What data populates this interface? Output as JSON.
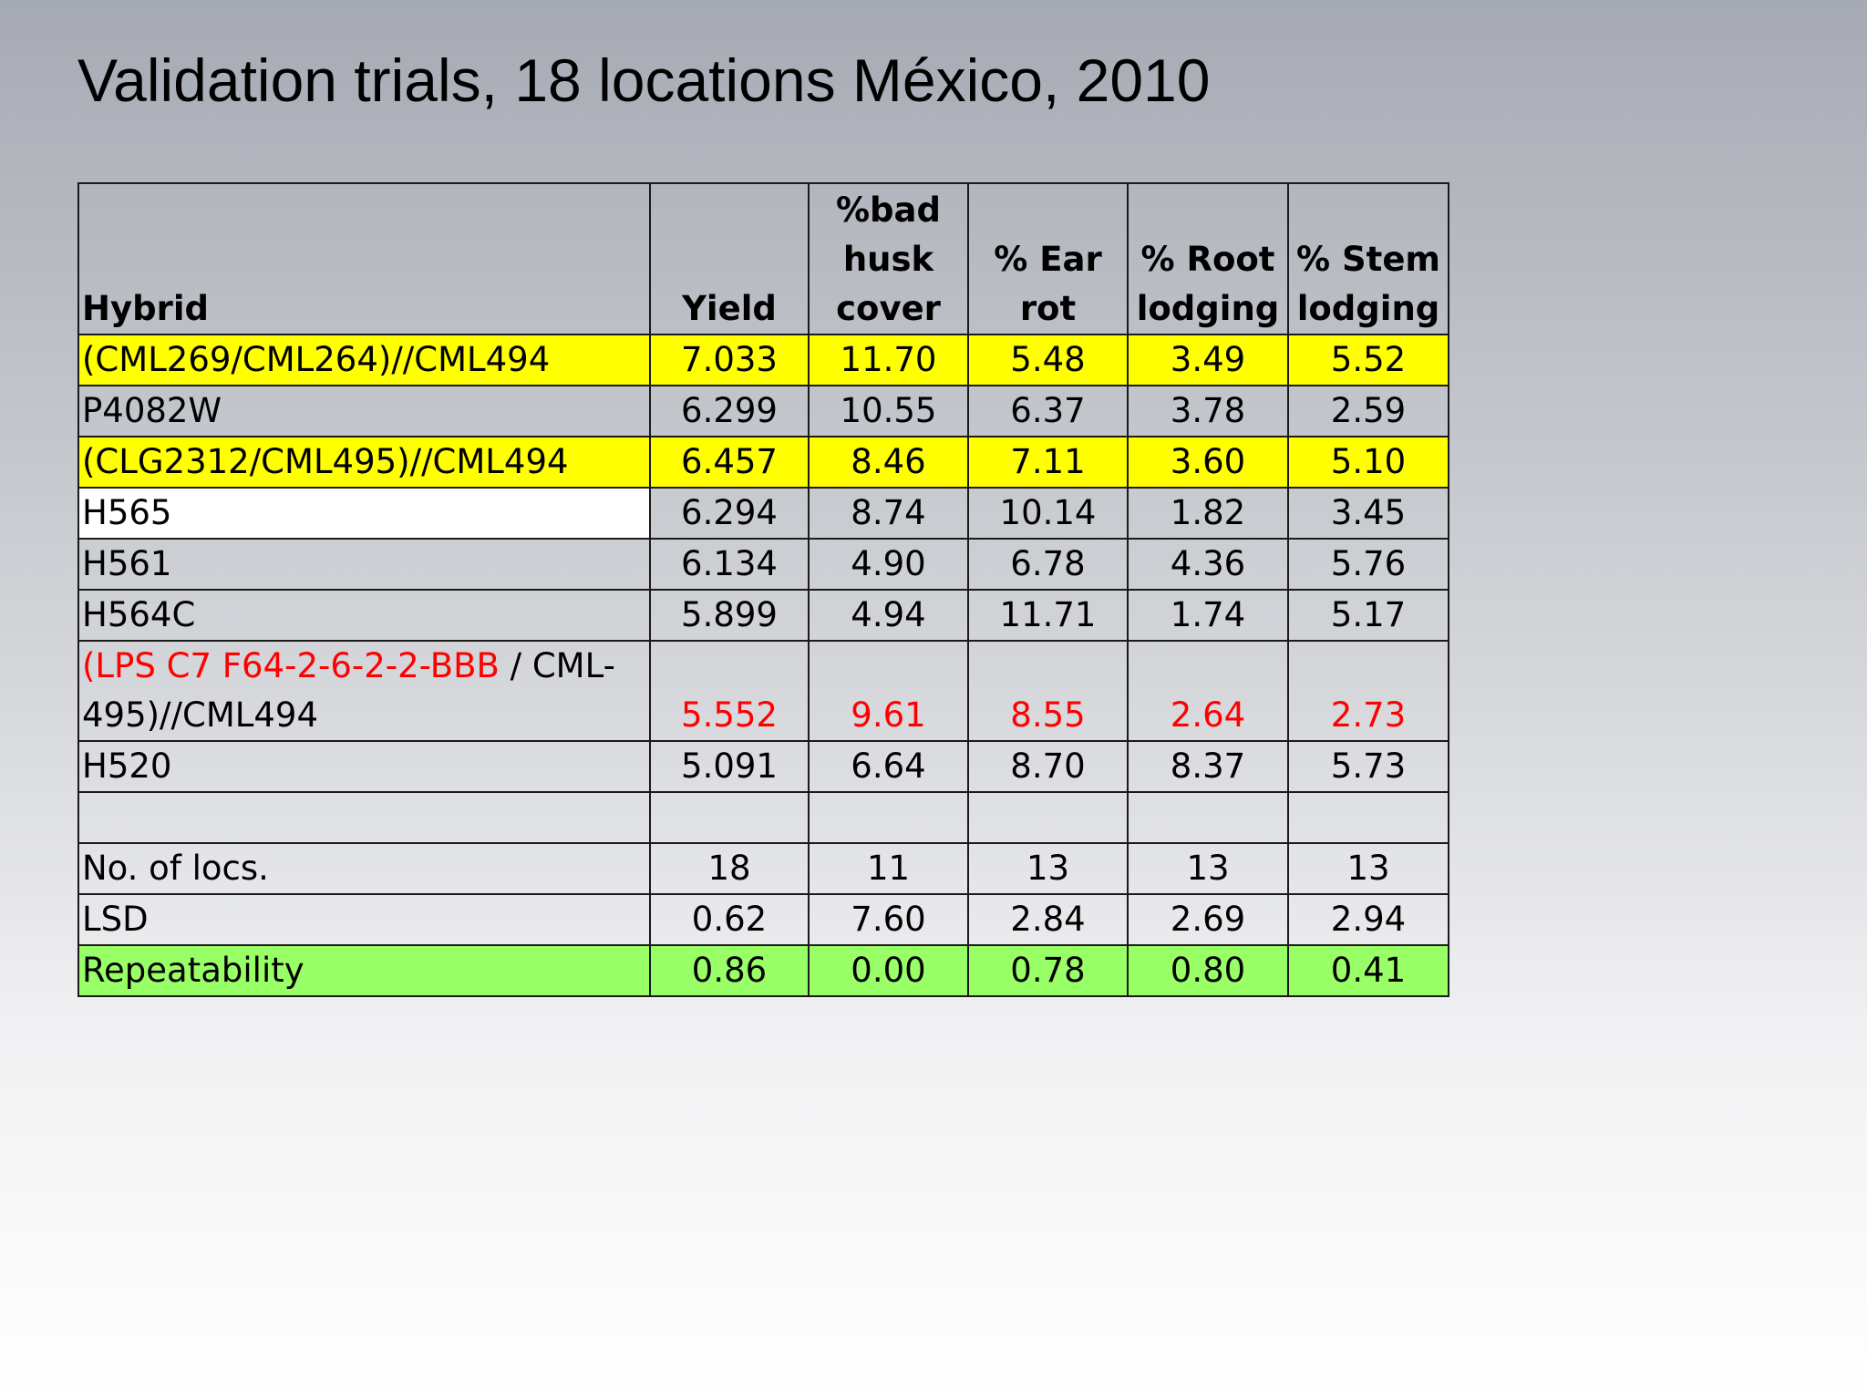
{
  "title": "Validation trials, 18 locations México, 2010",
  "colors": {
    "highlight_yellow": "#ffff00",
    "highlight_green": "#99ff66",
    "highlight_white": "#ffffff",
    "red_text": "#ff0000"
  },
  "table": {
    "headers": {
      "hybrid": "Hybrid",
      "yield": "Yield",
      "bad_husk": "%bad husk cover",
      "ear_rot": "% Ear rot",
      "root_lodging": "% Root lodging",
      "stem_lodging": "% Stem lodging"
    },
    "rows": [
      {
        "hybrid": "(CML269/CML264)//CML494",
        "yield": "7.033",
        "bad_husk": "11.70",
        "ear_rot": "5.48",
        "root_lodging": "3.49",
        "stem_lodging": "5.52",
        "highlight": "yellow"
      },
      {
        "hybrid": "P4082W",
        "yield": "6.299",
        "bad_husk": "10.55",
        "ear_rot": "6.37",
        "root_lodging": "3.78",
        "stem_lodging": "2.59"
      },
      {
        "hybrid": "(CLG2312/CML495)//CML494",
        "yield": "6.457",
        "bad_husk": "8.46",
        "ear_rot": "7.11",
        "root_lodging": "3.60",
        "stem_lodging": "5.10",
        "highlight": "yellow"
      },
      {
        "hybrid": "H565",
        "yield": "6.294",
        "bad_husk": "8.74",
        "ear_rot": "10.14",
        "root_lodging": "1.82",
        "stem_lodging": "3.45"
      },
      {
        "hybrid": "H561",
        "yield": "6.134",
        "bad_husk": "4.90",
        "ear_rot": "6.78",
        "root_lodging": "4.36",
        "stem_lodging": "5.76"
      },
      {
        "hybrid": "H564C",
        "yield": "5.899",
        "bad_husk": "4.94",
        "ear_rot": "11.71",
        "root_lodging": "1.74",
        "stem_lodging": "5.17"
      },
      {
        "hybrid_red_part": "(LPS C7 F64-2-6-2-2-BBB",
        "hybrid_black_part": " / CML-495)//CML494",
        "yield": "5.552",
        "bad_husk": "9.61",
        "ear_rot": "8.55",
        "root_lodging": "2.64",
        "stem_lodging": "2.73",
        "text_color": "red"
      },
      {
        "hybrid": "H520",
        "yield": "5.091",
        "bad_husk": "6.64",
        "ear_rot": "8.70",
        "root_lodging": "8.37",
        "stem_lodging": "5.73"
      }
    ],
    "summary": {
      "locs": {
        "label": "No. of locs.",
        "yield": "18",
        "bad_husk": "11",
        "ear_rot": "13",
        "root_lodging": "13",
        "stem_lodging": "13"
      },
      "lsd": {
        "label": "LSD",
        "yield": "0.62",
        "bad_husk": "7.60",
        "ear_rot": "2.84",
        "root_lodging": "2.69",
        "stem_lodging": "2.94"
      },
      "repeatability": {
        "label": "Repeatability",
        "yield": "0.86",
        "bad_husk": "0.00",
        "ear_rot": "0.78",
        "root_lodging": "0.80",
        "stem_lodging": "0.41",
        "highlight": "green"
      }
    }
  }
}
